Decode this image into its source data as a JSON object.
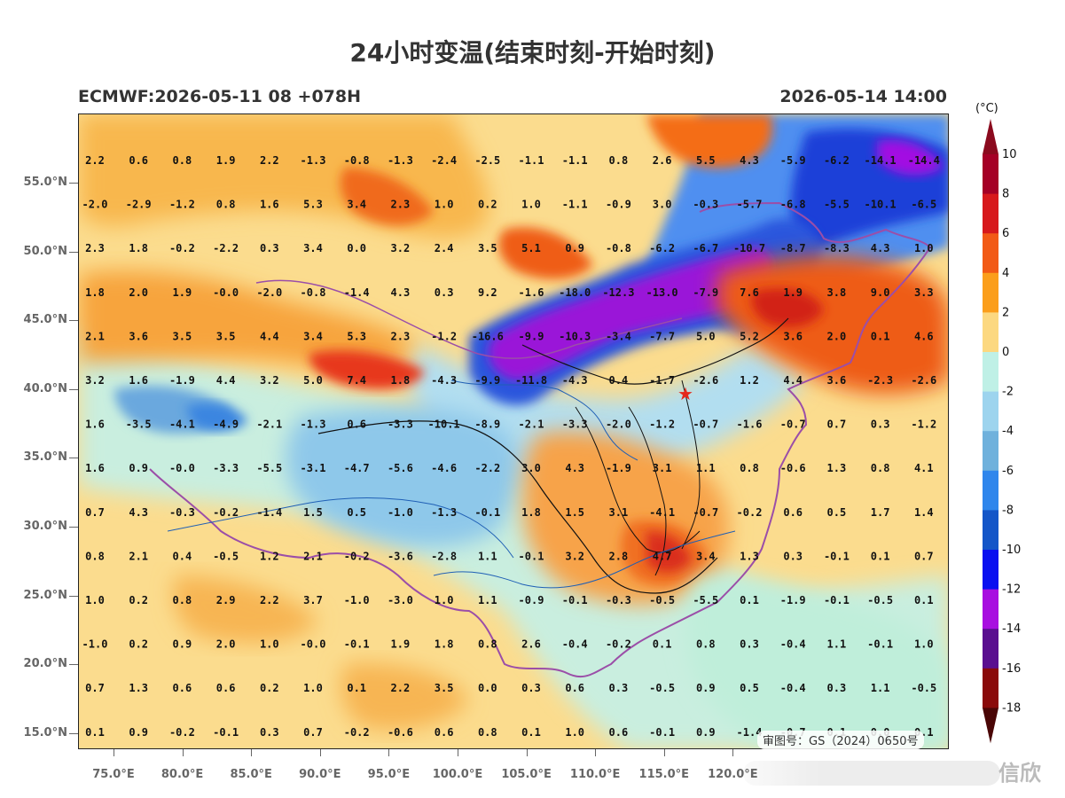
{
  "header": {
    "title": "24小时变温(结束时刻-开始时刻)",
    "model_run": "ECMWF:2026-05-11 08 +078H",
    "valid_time": "2026-05-14 14:00"
  },
  "axes": {
    "lat_labels": [
      "55.0°N",
      "50.0°N",
      "45.0°N",
      "40.0°N",
      "35.0°N",
      "30.0°N",
      "25.0°N",
      "20.0°N",
      "15.0°N"
    ],
    "lon_labels": [
      "75.0°E",
      "80.0°E",
      "85.0°E",
      "90.0°E",
      "95.0°E",
      "100.0°E",
      "105.0°E",
      "110.0°E",
      "115.0°E",
      "120.0°E"
    ]
  },
  "colorbar": {
    "unit": "(°C)",
    "labels": [
      "10",
      "8",
      "6",
      "4",
      "2",
      "0",
      "-2",
      "-4",
      "-6",
      "-8",
      "-10",
      "-12",
      "-14",
      "-16",
      "-18"
    ],
    "colors": [
      "#a50026",
      "#d7191c",
      "#f25a16",
      "#fb9e1b",
      "#fcd880",
      "#bff0e6",
      "#9dd4ee",
      "#6fb1dc",
      "#2f86ec",
      "#1456c8",
      "#0a10f0",
      "#a80fe0",
      "#5a0f90",
      "#8a0a0a"
    ]
  },
  "grid_values": [
    [
      "2.2",
      "0.6",
      "0.8",
      "1.9",
      "2.2",
      "-1.3",
      "-0.8",
      "-1.3",
      "-2.4",
      "-2.5",
      "-1.1",
      "-1.1",
      "0.8",
      "2.6",
      "5.5",
      "4.3",
      "-5.9",
      "-6.2",
      "-14.1",
      "-14.4"
    ],
    [
      "-2.0",
      "-2.9",
      "-1.2",
      "0.8",
      "1.6",
      "5.3",
      "3.4",
      "2.3",
      "1.0",
      "0.2",
      "1.0",
      "-1.1",
      "-0.9",
      "3.0",
      "-0.3",
      "-5.7",
      "-6.8",
      "-5.5",
      "-10.1",
      "-6.5"
    ],
    [
      "2.3",
      "1.8",
      "-0.2",
      "-2.2",
      "0.3",
      "3.4",
      "0.0",
      "3.2",
      "2.4",
      "3.5",
      "5.1",
      "0.9",
      "-0.8",
      "-6.2",
      "-6.7",
      "-10.7",
      "-8.7",
      "-8.3",
      "4.3",
      "1.0"
    ],
    [
      "1.8",
      "2.0",
      "1.9",
      "-0.0",
      "-2.0",
      "-0.8",
      "-1.4",
      "4.3",
      "0.3",
      "9.2",
      "-1.6",
      "-18.0",
      "-12.3",
      "-13.0",
      "-7.9",
      "7.6",
      "1.9",
      "3.8",
      "9.0",
      "3.3"
    ],
    [
      "2.1",
      "3.6",
      "3.5",
      "3.5",
      "4.4",
      "3.4",
      "5.3",
      "2.3",
      "-1.2",
      "-16.6",
      "-9.9",
      "-10.3",
      "-3.4",
      "-7.7",
      "5.0",
      "5.2",
      "3.6",
      "2.0",
      "0.1",
      "4.6"
    ],
    [
      "3.2",
      "1.6",
      "-1.9",
      "4.4",
      "3.2",
      "5.0",
      "7.4",
      "1.8",
      "-4.3",
      "-9.9",
      "-11.8",
      "-4.3",
      "0.4",
      "-1.7",
      "-2.6",
      "1.2",
      "4.4",
      "3.6",
      "-2.3",
      "-2.6"
    ],
    [
      "1.6",
      "-3.5",
      "-4.1",
      "-4.9",
      "-2.1",
      "-1.3",
      "0.6",
      "-3.3",
      "-10.1",
      "-8.9",
      "-2.1",
      "-3.3",
      "-2.0",
      "-1.2",
      "-0.7",
      "-1.6",
      "-0.7",
      "0.7",
      "0.3",
      "-1.2"
    ],
    [
      "1.6",
      "0.9",
      "-0.0",
      "-3.3",
      "-5.5",
      "-3.1",
      "-4.7",
      "-5.6",
      "-4.6",
      "-2.2",
      "3.0",
      "4.3",
      "-1.9",
      "3.1",
      "1.1",
      "0.8",
      "-0.6",
      "1.3",
      "0.8",
      "4.1"
    ],
    [
      "0.7",
      "4.3",
      "-0.3",
      "-0.2",
      "-1.4",
      "1.5",
      "0.5",
      "-1.0",
      "-1.3",
      "-0.1",
      "1.8",
      "1.5",
      "3.1",
      "-4.1",
      "-0.7",
      "-0.2",
      "0.6",
      "0.5",
      "1.7",
      "1.4"
    ],
    [
      "0.8",
      "2.1",
      "0.4",
      "-0.5",
      "1.2",
      "2.1",
      "-0.2",
      "-3.6",
      "-2.8",
      "1.1",
      "-0.1",
      "3.2",
      "2.8",
      "4.7",
      "3.4",
      "1.3",
      "0.3",
      "-0.1",
      "0.1",
      "0.7"
    ],
    [
      "1.0",
      "0.2",
      "0.8",
      "2.9",
      "2.2",
      "3.7",
      "-1.0",
      "-3.0",
      "1.0",
      "1.1",
      "-0.9",
      "-0.1",
      "-0.3",
      "-0.5",
      "-5.5",
      "0.1",
      "-1.9",
      "-0.1",
      "-0.5",
      "0.1"
    ],
    [
      "-1.0",
      "0.2",
      "0.9",
      "2.0",
      "1.0",
      "-0.0",
      "-0.1",
      "1.9",
      "1.8",
      "0.8",
      "2.6",
      "-0.4",
      "-0.2",
      "0.1",
      "0.8",
      "0.3",
      "-0.4",
      "1.1",
      "-0.1",
      "1.0"
    ],
    [
      "0.7",
      "1.3",
      "0.6",
      "0.6",
      "0.2",
      "1.0",
      "0.1",
      "2.2",
      "3.5",
      "0.0",
      "0.3",
      "0.6",
      "0.3",
      "-0.5",
      "0.9",
      "0.5",
      "-0.4",
      "0.3",
      "1.1",
      "-0.5"
    ],
    [
      "0.1",
      "0.9",
      "-0.2",
      "-0.1",
      "0.3",
      "0.7",
      "-0.2",
      "-0.6",
      "0.6",
      "0.8",
      "0.1",
      "1.0",
      "0.6",
      "-0.1",
      "0.9",
      "-1.4",
      "-0.7",
      "0.1",
      "0.0",
      "0.1"
    ]
  ],
  "marker": {
    "name": "Beijing",
    "symbol": "★",
    "color": "#e5281c"
  },
  "stamp": "审图号：GS（2024）0650号",
  "watermark": "信欣"
}
